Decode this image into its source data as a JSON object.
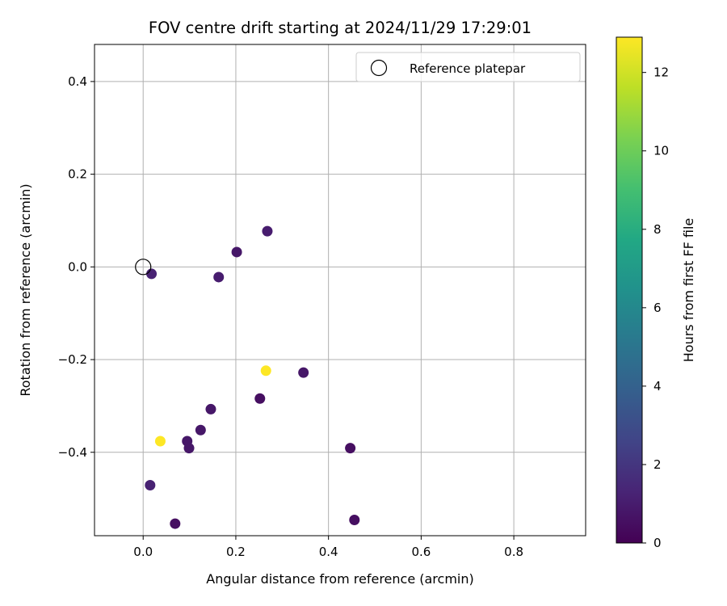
{
  "chart_data": {
    "type": "scatter",
    "title": "FOV centre drift starting at 2024/11/29 17:29:01",
    "xlabel": "Angular distance from reference (arcmin)",
    "ylabel": "Rotation from reference (arcmin)",
    "xlim": [
      -0.105,
      0.955
    ],
    "ylim": [
      -0.58,
      0.48
    ],
    "xticks": [
      {
        "value": 0.0,
        "label": "0.0"
      },
      {
        "value": 0.2,
        "label": "0.2"
      },
      {
        "value": 0.4,
        "label": "0.4"
      },
      {
        "value": 0.6,
        "label": "0.6"
      },
      {
        "value": 0.8,
        "label": "0.8"
      }
    ],
    "yticks": [
      {
        "value": 0.4,
        "label": "0.4"
      },
      {
        "value": 0.2,
        "label": "0.2"
      },
      {
        "value": 0.0,
        "label": "0.0"
      },
      {
        "value": -0.2,
        "label": "−0.2"
      },
      {
        "value": -0.4,
        "label": "−0.4"
      }
    ],
    "grid": true,
    "legend": {
      "placement": "top-right",
      "entries": [
        "Reference platepar"
      ]
    },
    "reference_point": {
      "x": 0.0,
      "y": 0.0
    },
    "colormap": "viridis",
    "colorbar": {
      "label": "Hours from first FF file",
      "range": [
        0,
        12.9
      ],
      "ticks": [
        {
          "value": 0,
          "label": "0"
        },
        {
          "value": 2,
          "label": "2"
        },
        {
          "value": 4,
          "label": "4"
        },
        {
          "value": 6,
          "label": "6"
        },
        {
          "value": 8,
          "label": "8"
        },
        {
          "value": 10,
          "label": "10"
        },
        {
          "value": 12,
          "label": "12"
        }
      ]
    },
    "points": [
      {
        "x": 0.018,
        "y": -0.015,
        "hours": 1.2
      },
      {
        "x": 0.163,
        "y": -0.022,
        "hours": 1.0
      },
      {
        "x": 0.202,
        "y": 0.032,
        "hours": 0.8
      },
      {
        "x": 0.268,
        "y": 0.077,
        "hours": 1.0
      },
      {
        "x": 0.265,
        "y": -0.224,
        "hours": 12.9
      },
      {
        "x": 0.346,
        "y": -0.228,
        "hours": 0.8
      },
      {
        "x": 0.252,
        "y": -0.284,
        "hours": 0.5
      },
      {
        "x": 0.146,
        "y": -0.307,
        "hours": 0.8
      },
      {
        "x": 0.124,
        "y": -0.352,
        "hours": 0.8
      },
      {
        "x": 0.037,
        "y": -0.376,
        "hours": 12.9
      },
      {
        "x": 0.095,
        "y": -0.376,
        "hours": 0.8
      },
      {
        "x": 0.099,
        "y": -0.391,
        "hours": 0.8
      },
      {
        "x": 0.447,
        "y": -0.391,
        "hours": 0.5
      },
      {
        "x": 0.015,
        "y": -0.471,
        "hours": 1.2
      },
      {
        "x": 0.456,
        "y": -0.546,
        "hours": 0.5
      },
      {
        "x": 0.069,
        "y": -0.554,
        "hours": 0.5
      }
    ]
  }
}
